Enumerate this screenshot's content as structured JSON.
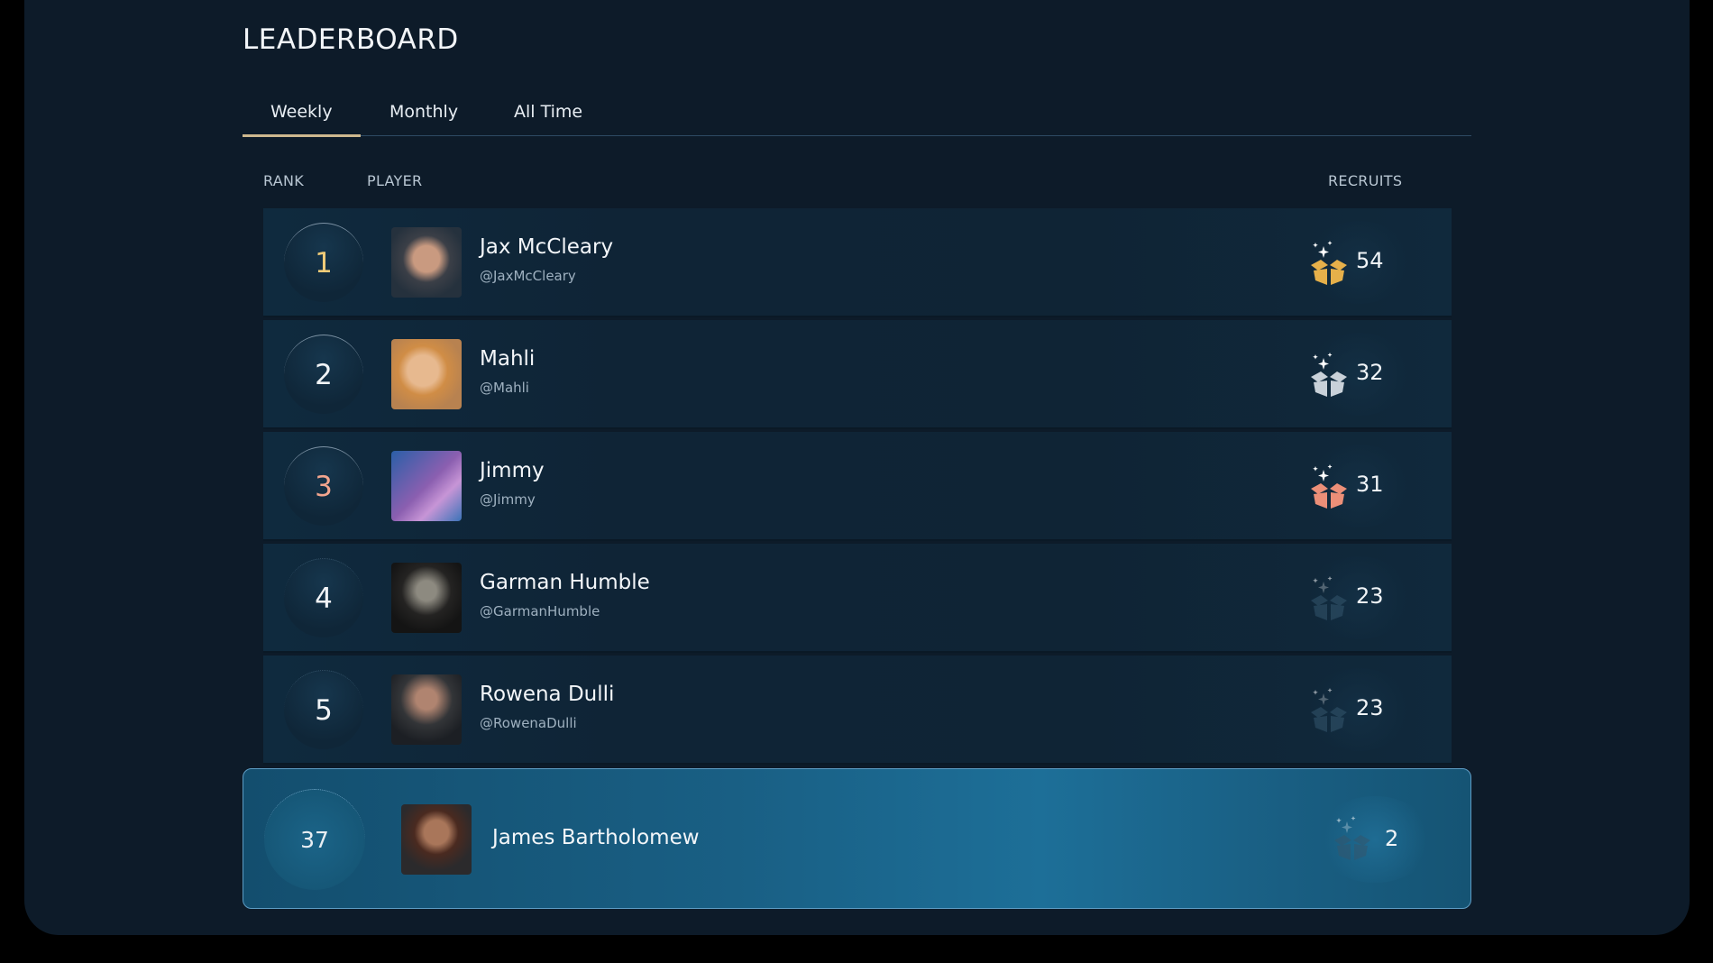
{
  "title": "LEADERBOARD",
  "tabs": [
    {
      "label": "Weekly",
      "active": true
    },
    {
      "label": "Monthly"
    },
    {
      "label": "All Time"
    }
  ],
  "columns": {
    "rank": "RANK",
    "player": "PLAYER",
    "recruits": "RECRUITS"
  },
  "colors": {
    "gold": "#e6b04a",
    "silver": "#c9d1d9",
    "bronze": "#ec8f78",
    "dim": "#34566d",
    "active_tab": "#cdb88e"
  },
  "rows": [
    {
      "rank": "1",
      "name": "Jax McCleary",
      "handle": "@JaxMcCleary",
      "recruits": "54",
      "tier": "gold",
      "icon": "recruit-box-icon"
    },
    {
      "rank": "2",
      "name": "Mahli",
      "handle": "@Mahli",
      "recruits": "32",
      "tier": "silver",
      "icon": "recruit-box-icon"
    },
    {
      "rank": "3",
      "name": "Jimmy",
      "handle": "@Jimmy",
      "recruits": "31",
      "tier": "bronze",
      "icon": "recruit-box-icon"
    },
    {
      "rank": "4",
      "name": "Garman Humble",
      "handle": "@GarmanHumble",
      "recruits": "23",
      "tier": "dim",
      "icon": "recruit-box-icon"
    },
    {
      "rank": "5",
      "name": "Rowena Dulli",
      "handle": "@RowenaDulli",
      "recruits": "23",
      "tier": "dim",
      "icon": "recruit-box-icon"
    }
  ],
  "current_user": {
    "rank": "37",
    "name": "James Bartholomew",
    "recruits": "2",
    "tier": "dim"
  }
}
